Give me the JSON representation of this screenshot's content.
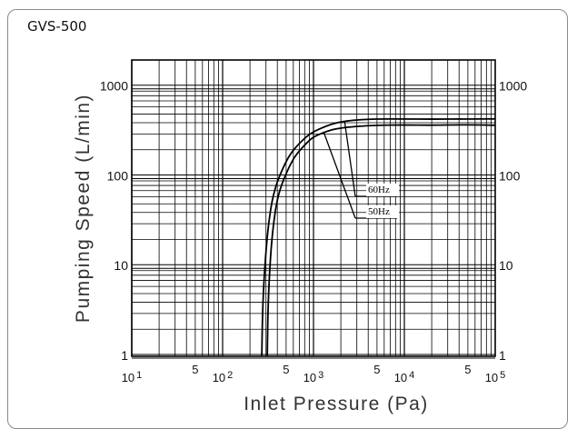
{
  "header": {
    "model_label": "GVS-500"
  },
  "chart_data": {
    "type": "line",
    "title": "",
    "xlabel": "Inlet Pressure (Pa)",
    "ylabel": "Pumping Speed (L/min)",
    "x_scale": "log",
    "y_scale": "log",
    "xlim": [
      10,
      100000
    ],
    "ylim": [
      1,
      2000
    ],
    "grid": true,
    "x_major_ticks": [
      {
        "value": 10,
        "base": "10",
        "exp": "1"
      },
      {
        "value": 100,
        "base": "10",
        "exp": "2"
      },
      {
        "value": 1000,
        "base": "10",
        "exp": "3"
      },
      {
        "value": 10000,
        "base": "10",
        "exp": "4"
      },
      {
        "value": 100000,
        "base": "10",
        "exp": "5"
      }
    ],
    "x_minor_labels": [
      {
        "value": 50,
        "label": "5"
      },
      {
        "value": 500,
        "label": "5"
      },
      {
        "value": 5000,
        "label": "5"
      },
      {
        "value": 50000,
        "label": "5"
      }
    ],
    "y_ticks": [
      {
        "value": 1,
        "label": "1"
      },
      {
        "value": 10,
        "label": "10"
      },
      {
        "value": 100,
        "label": "100"
      },
      {
        "value": 1000,
        "label": "1000"
      }
    ],
    "series": [
      {
        "name": "60Hz",
        "x": [
          270,
          275,
          285,
          300,
          320,
          350,
          400,
          500,
          600,
          800,
          1000,
          1500,
          2000,
          3000,
          5000,
          10000,
          20000,
          50000,
          100000
        ],
        "y": [
          1,
          3,
          7,
          15,
          30,
          55,
          90,
          150,
          200,
          270,
          320,
          380,
          410,
          430,
          440,
          440,
          438,
          440,
          440
        ]
      },
      {
        "name": "50Hz",
        "x": [
          310,
          315,
          325,
          340,
          360,
          390,
          440,
          550,
          650,
          850,
          1000,
          1500,
          2000,
          3000,
          5000,
          10000,
          20000,
          50000,
          100000
        ],
        "y": [
          1,
          3,
          7,
          15,
          28,
          50,
          80,
          135,
          180,
          240,
          280,
          330,
          350,
          365,
          375,
          378,
          375,
          380,
          375
        ]
      }
    ],
    "annotations": [
      {
        "text": "60Hz",
        "series": "60Hz",
        "at_x": 2200
      },
      {
        "text": "50Hz",
        "series": "50Hz",
        "at_x": 1300
      }
    ]
  }
}
